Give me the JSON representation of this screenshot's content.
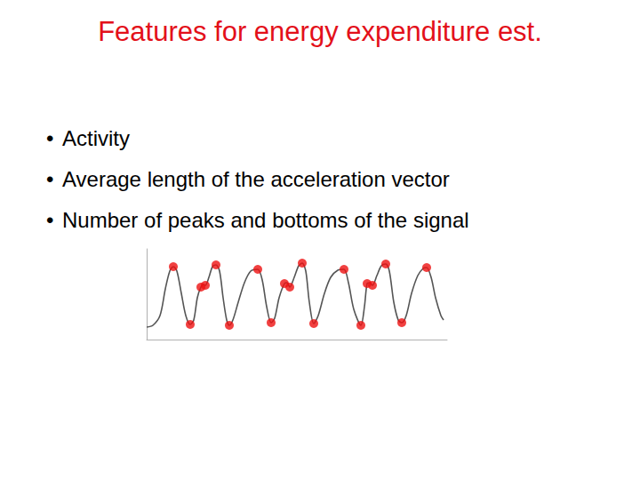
{
  "title": "Features for energy expenditure est.",
  "bullets": [
    "Activity",
    "Average length of the acceleration vector",
    "Number of peaks and bottoms of the signal"
  ],
  "chart_data": {
    "type": "line",
    "xlim": [
      0,
      338
    ],
    "ylim": [
      0,
      102
    ],
    "tick_labels": false,
    "grid": false,
    "series": [
      {
        "type": "line",
        "color": "#555555",
        "line_style": "solid",
        "x": [
          0,
          7,
          15,
          21,
          26,
          30,
          34,
          39,
          44,
          49,
          53,
          57,
          61,
          64,
          66,
          70,
          74,
          78,
          82,
          86,
          90,
          93,
          97,
          103,
          110,
          117,
          125,
          130,
          135,
          140,
          144,
          149,
          155,
          158,
          161,
          166,
          171,
          175,
          179,
          183,
          188,
          193,
          200,
          207,
          215,
          222,
          227,
          233,
          241,
          245,
          248,
          251,
          254,
          259,
          264,
          269,
          273,
          278,
          283,
          287,
          292,
          298,
          305,
          311,
          315,
          320,
          325,
          331,
          334
        ],
        "values": [
          14,
          16,
          27,
          57,
          77,
          82,
          77,
          52,
          27,
          17,
          22,
          47,
          59,
          62,
          61,
          70,
          82,
          84,
          77,
          47,
          22,
          16,
          22,
          42,
          64,
          77,
          79,
          67,
          37,
          19,
          24,
          47,
          63,
          64,
          59,
          70,
          83,
          86,
          77,
          42,
          18,
          27,
          52,
          70,
          78,
          79,
          64,
          34,
          16,
          37,
          63,
          64,
          61,
          72,
          83,
          85,
          77,
          42,
          22,
          19,
          27,
          52,
          72,
          80,
          81,
          70,
          47,
          27,
          22
        ]
      },
      {
        "type": "scatter",
        "color": "#ee1111",
        "marker": "circle",
        "x": [
          30,
          78,
          125,
          175,
          222,
          269,
          315,
          61,
          66,
          155,
          161,
          248,
          254,
          49,
          93,
          140,
          188,
          241,
          287
        ],
        "values": [
          82,
          84,
          79,
          86,
          79,
          85,
          81,
          59,
          61,
          63,
          59,
          63,
          61,
          17,
          16,
          19,
          18,
          16,
          19
        ]
      }
    ]
  }
}
